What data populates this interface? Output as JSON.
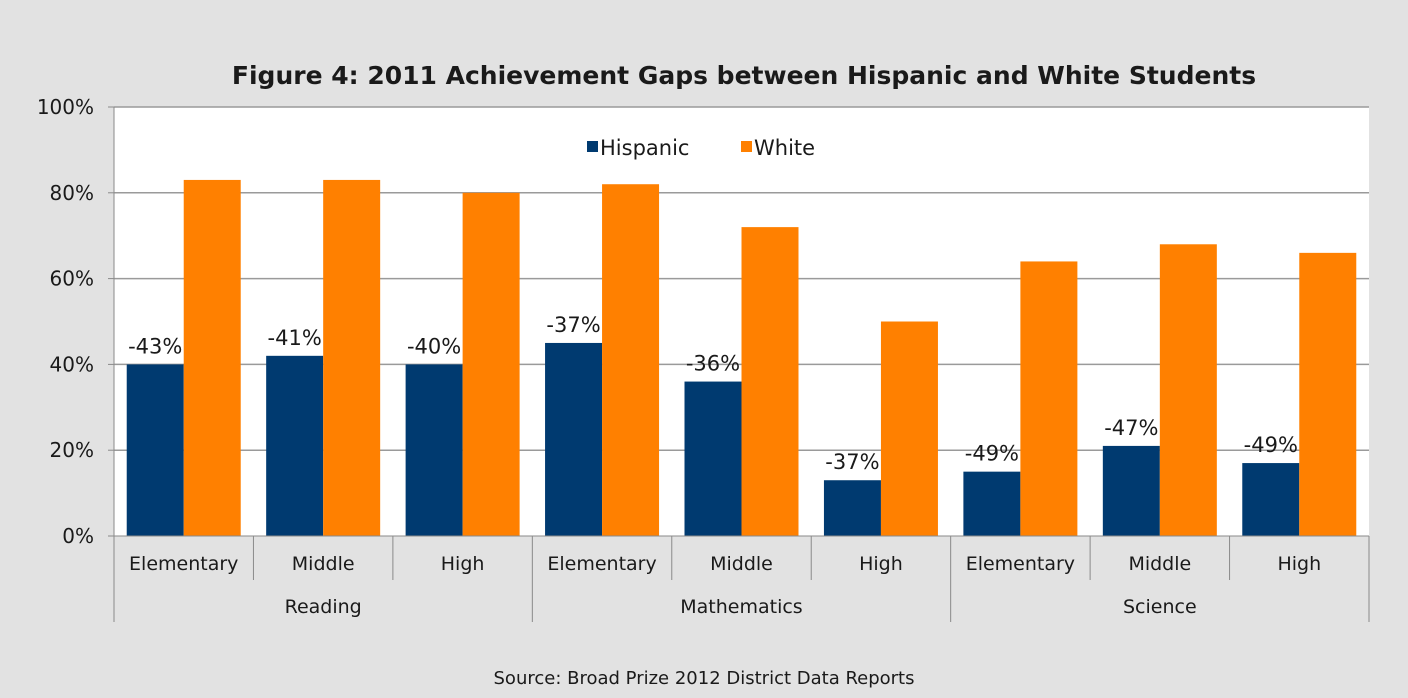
{
  "chart_data": {
    "type": "bar",
    "title": "Figure 4: 2011 Achievement Gaps between Hispanic and White Students",
    "source": "Source: Broad Prize 2012 District Data Reports",
    "groups": [
      "Reading",
      "Mathematics",
      "Science"
    ],
    "group_sizes": [
      3,
      3,
      3
    ],
    "categories": [
      "Elementary",
      "Middle",
      "High",
      "Elementary",
      "Middle",
      "High",
      "Elementary",
      "Middle",
      "High"
    ],
    "series": [
      {
        "name": "Hispanic",
        "color": "#003a70",
        "values": [
          40,
          42,
          40,
          45,
          36,
          13,
          15,
          21,
          17
        ]
      },
      {
        "name": "White",
        "color": "#ff8000",
        "values": [
          83,
          83,
          80,
          82,
          72,
          50,
          64,
          68,
          66
        ]
      }
    ],
    "gap_labels": [
      "-43%",
      "-41%",
      "-40%",
      "-37%",
      "-36%",
      "-37%",
      "-49%",
      "-47%",
      "-49%"
    ],
    "yticks": [
      "0%",
      "20%",
      "40%",
      "60%",
      "80%",
      "100%"
    ],
    "ylim": [
      0,
      100
    ],
    "grid": true,
    "legend": "top-center"
  }
}
